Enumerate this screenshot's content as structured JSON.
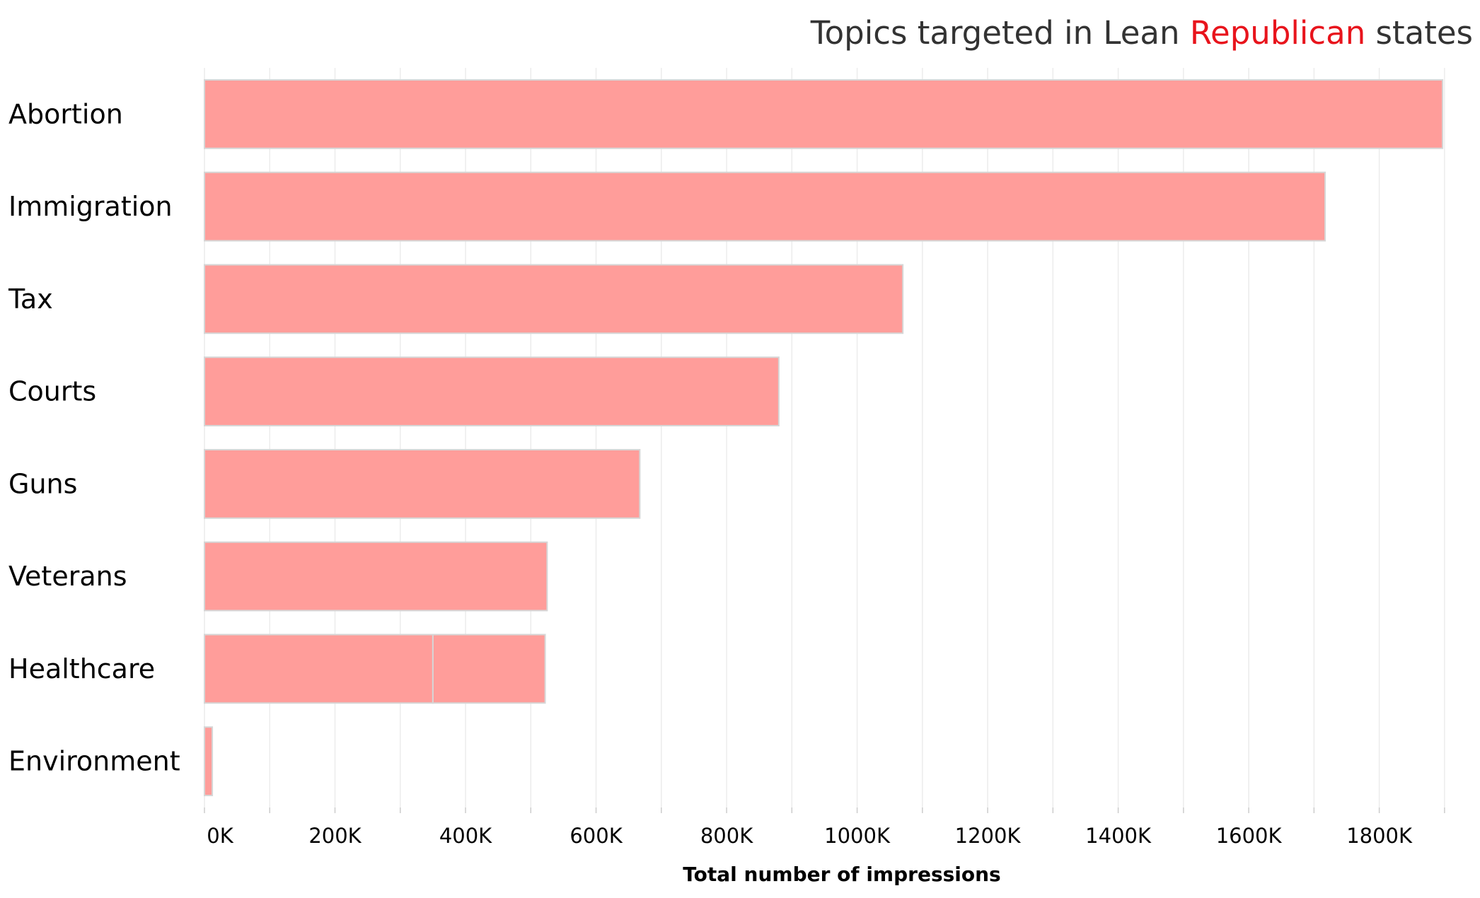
{
  "chart_data": {
    "type": "bar",
    "orientation": "horizontal",
    "title_parts": [
      {
        "text": "Topics targeted in Lean ",
        "color": "#333333"
      },
      {
        "text": "Republican",
        "color": "#e8141c"
      },
      {
        "text": " states",
        "color": "#333333"
      }
    ],
    "xlabel": "Total number of impressions",
    "ylabel": "",
    "categories": [
      "Abortion",
      "Immigration",
      "Tax",
      "Courts",
      "Guns",
      "Veterans",
      "Healthcare",
      "Environment"
    ],
    "series": [
      {
        "values": [
          1897000,
          1717000,
          1070000,
          880000,
          667000,
          525000,
          350000,
          12000
        ]
      },
      {
        "values": [
          0,
          0,
          0,
          0,
          0,
          0,
          172000,
          0
        ]
      }
    ],
    "xlim": [
      0,
      1950000
    ],
    "xticks": [
      0,
      200000,
      400000,
      600000,
      800000,
      1000000,
      1200000,
      1400000,
      1600000,
      1800000
    ],
    "xtick_labels": [
      "0K",
      "200K",
      "400K",
      "600K",
      "800K",
      "1000K",
      "1200K",
      "1400K",
      "1600K",
      "1800K"
    ],
    "minor_xticks": [
      100000,
      300000,
      500000,
      700000,
      900000,
      1100000,
      1300000,
      1500000,
      1700000,
      1900000
    ],
    "grid": true,
    "colors": {
      "bar": "#ff9d9a",
      "bar_edge": "#d6d6d6",
      "grid": "#ececec",
      "text": "#000000",
      "title": "#333333"
    }
  }
}
